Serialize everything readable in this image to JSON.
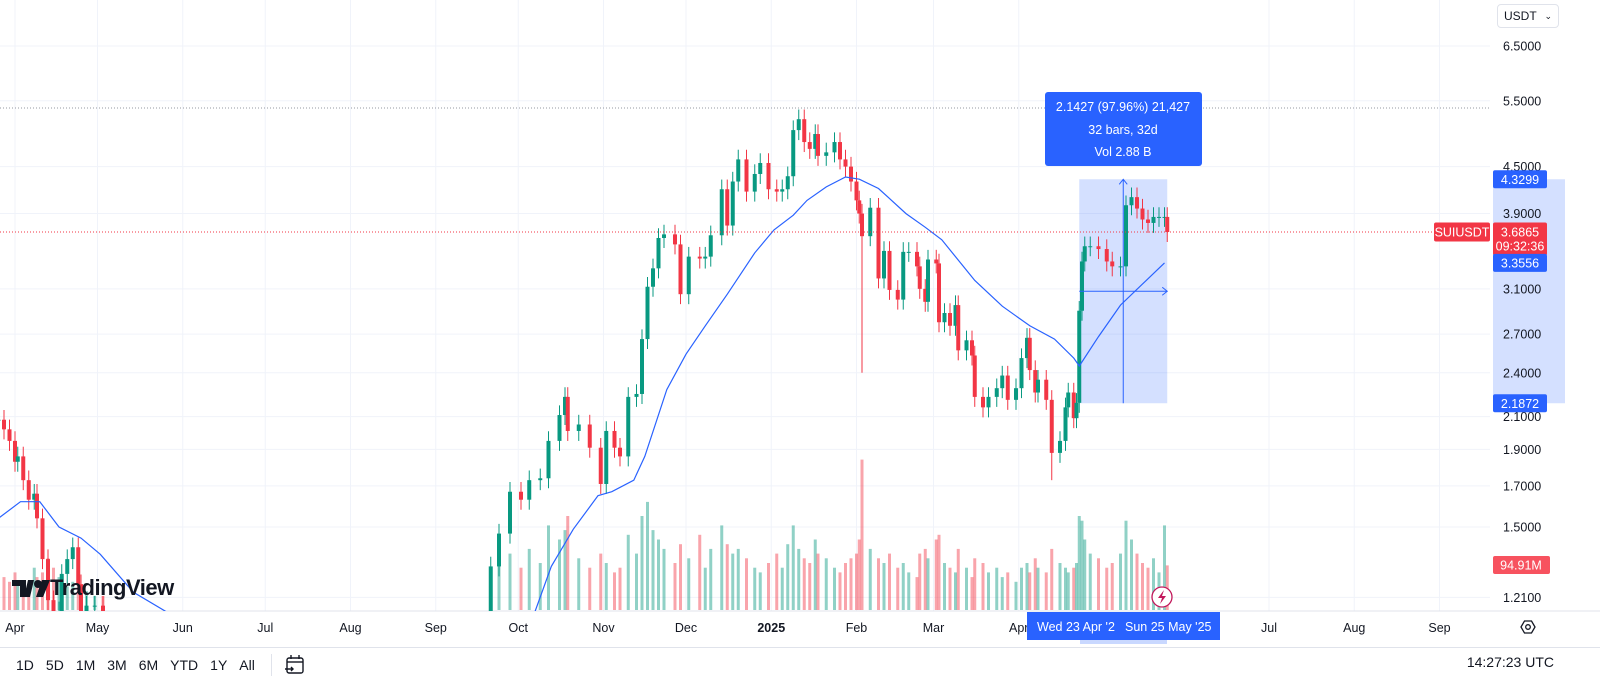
{
  "symbol_label": "SUIUSDT",
  "currency_select": "USDT",
  "logo_text": "TradingView",
  "clock": "14:27:23 UTC",
  "timeframes": [
    "1D",
    "5D",
    "1M",
    "3M",
    "6M",
    "YTD",
    "1Y",
    "All"
  ],
  "colors": {
    "up": "#089981",
    "down": "#F23645",
    "ma": "#2962FF",
    "measure": "#2962FF",
    "measure_fill": "#dbe6fd"
  },
  "chart_data": {
    "type": "candlestick",
    "scale": "log",
    "ylim": [
      1.13,
      6.8
    ],
    "grid": true,
    "y_ticks": [
      "6.5000",
      "5.5000",
      "4.5000",
      "3.9000",
      "3.1000",
      "2.7000",
      "2.4000",
      "2.1000",
      "1.9000",
      "1.7000",
      "1.5000",
      "1.2100"
    ],
    "x_ticks": [
      {
        "date": "2024-04-01",
        "label": "Apr"
      },
      {
        "date": "2024-05-01",
        "label": "May"
      },
      {
        "date": "2024-06-01",
        "label": "Jun"
      },
      {
        "date": "2024-07-01",
        "label": "Jul"
      },
      {
        "date": "2024-08-01",
        "label": "Aug"
      },
      {
        "date": "2024-09-01",
        "label": "Sep"
      },
      {
        "date": "2024-10-01",
        "label": "Oct"
      },
      {
        "date": "2024-11-01",
        "label": "Nov"
      },
      {
        "date": "2024-12-01",
        "label": "Dec"
      },
      {
        "date": "2025-01-01",
        "label": "2025",
        "bold": true
      },
      {
        "date": "2025-02-01",
        "label": "Feb"
      },
      {
        "date": "2025-03-01",
        "label": "Mar"
      },
      {
        "date": "2025-04-01",
        "label": "Apr"
      },
      {
        "date": "2025-07-01",
        "label": "Jul"
      },
      {
        "date": "2025-08-01",
        "label": "Aug"
      },
      {
        "date": "2025-09-01",
        "label": "Sep"
      }
    ],
    "candle_fields": [
      "date",
      "close",
      "volume_M",
      "low"
    ],
    "candles": [
      [
        "2024-03-26",
        2.08,
        90
      ],
      [
        "2024-03-28",
        2.02,
        70
      ],
      [
        "2024-03-30",
        1.95,
        60
      ],
      [
        "2024-04-01",
        1.83,
        80
      ],
      [
        "2024-04-02",
        1.86,
        60
      ],
      [
        "2024-04-04",
        1.73,
        50
      ],
      [
        "2024-04-06",
        1.63,
        40
      ],
      [
        "2024-04-08",
        1.66,
        90
      ],
      [
        "2024-04-09",
        1.54,
        70
      ],
      [
        "2024-04-11",
        1.36,
        80
      ],
      [
        "2024-04-13",
        1.2,
        110
      ],
      [
        "2024-04-15",
        1.12,
        90
      ],
      [
        "2024-04-17",
        1.16,
        70
      ],
      [
        "2024-04-18",
        1.3,
        60
      ],
      [
        "2024-04-20",
        1.36,
        50
      ],
      [
        "2024-04-22",
        1.41,
        60
      ],
      [
        "2024-04-24",
        1.26,
        50
      ],
      [
        "2024-04-25",
        1.12,
        40
      ],
      [
        "2024-04-27",
        1.18,
        40
      ],
      [
        "2024-04-30",
        1.18,
        30
      ],
      [
        "2024-05-03",
        1.15,
        30
      ],
      [
        "2024-09-21",
        1.33,
        60
      ],
      [
        "2024-09-24",
        1.47,
        110
      ],
      [
        "2024-09-28",
        1.67,
        120
      ],
      [
        "2024-10-02",
        1.63,
        90
      ],
      [
        "2024-10-05",
        1.73,
        130
      ],
      [
        "2024-10-09",
        1.74,
        100
      ],
      [
        "2024-10-12",
        1.95,
        180
      ],
      [
        "2024-10-16",
        2.11,
        150
      ],
      [
        "2024-10-18",
        2.23,
        170
      ],
      [
        "2024-10-19",
        2.01,
        200
      ],
      [
        "2024-10-23",
        2.05,
        110
      ],
      [
        "2024-10-27",
        1.91,
        90
      ],
      [
        "2024-10-31",
        1.71,
        120
      ],
      [
        "2024-11-02",
        2.01,
        100
      ],
      [
        "2024-11-05",
        1.91,
        80
      ],
      [
        "2024-11-07",
        1.86,
        90
      ],
      [
        "2024-11-10",
        2.23,
        160
      ],
      [
        "2024-11-13",
        2.25,
        120
      ],
      [
        "2024-11-15",
        2.66,
        200
      ],
      [
        "2024-11-17",
        3.12,
        230
      ],
      [
        "2024-11-19",
        3.3,
        170
      ],
      [
        "2024-11-21",
        3.62,
        150
      ],
      [
        "2024-11-23",
        3.66,
        130
      ],
      [
        "2024-11-27",
        3.55,
        100
      ],
      [
        "2024-11-29",
        3.05,
        140
      ],
      [
        "2024-12-02",
        3.42,
        110
      ],
      [
        "2024-12-06",
        3.4,
        160
      ],
      [
        "2024-12-08",
        3.42,
        90
      ],
      [
        "2024-12-10",
        3.65,
        130
      ],
      [
        "2024-12-14",
        4.2,
        180
      ],
      [
        "2024-12-16",
        3.76,
        140
      ],
      [
        "2024-12-18",
        4.3,
        120
      ],
      [
        "2024-12-20",
        4.6,
        130
      ],
      [
        "2024-12-23",
        4.17,
        110
      ],
      [
        "2024-12-26",
        4.4,
        90
      ],
      [
        "2024-12-28",
        4.55,
        80
      ],
      [
        "2024-12-31",
        4.2,
        100
      ],
      [
        "2025-01-03",
        4.17,
        120
      ],
      [
        "2025-01-05",
        4.2,
        90
      ],
      [
        "2025-01-07",
        4.37,
        140
      ],
      [
        "2025-01-09",
        5.03,
        180
      ],
      [
        "2025-01-11",
        5.2,
        130
      ],
      [
        "2025-01-13",
        4.85,
        110
      ],
      [
        "2025-01-15",
        4.75,
        100
      ],
      [
        "2025-01-17",
        4.97,
        150
      ],
      [
        "2025-01-18",
        4.65,
        120
      ],
      [
        "2025-01-21",
        4.7,
        110
      ],
      [
        "2025-01-24",
        4.85,
        90
      ],
      [
        "2025-01-26",
        4.6,
        80
      ],
      [
        "2025-01-28",
        4.5,
        100
      ],
      [
        "2025-01-30",
        4.3,
        110
      ],
      [
        "2025-02-01",
        4.06,
        120
      ],
      [
        "2025-02-02",
        3.9,
        150
      ],
      [
        "2025-02-03",
        3.64,
        320,
        2.4
      ],
      [
        "2025-02-06",
        3.97,
        130
      ],
      [
        "2025-02-09",
        3.2,
        110
      ],
      [
        "2025-02-11",
        3.48,
        100
      ],
      [
        "2025-02-13",
        3.09,
        120
      ],
      [
        "2025-02-16",
        3.0,
        90
      ],
      [
        "2025-02-18",
        3.47,
        100
      ],
      [
        "2025-02-20",
        3.47,
        80
      ],
      [
        "2025-02-23",
        3.32,
        70
      ],
      [
        "2025-02-24",
        3.1,
        120
      ],
      [
        "2025-02-26",
        2.98,
        130
      ],
      [
        "2025-02-27",
        3.39,
        110
      ],
      [
        "2025-03-02",
        3.35,
        150
      ],
      [
        "2025-03-03",
        2.8,
        160
      ],
      [
        "2025-03-05",
        2.88,
        100
      ],
      [
        "2025-03-07",
        2.77,
        90
      ],
      [
        "2025-03-09",
        2.95,
        80
      ],
      [
        "2025-03-10",
        2.57,
        130
      ],
      [
        "2025-03-13",
        2.65,
        90
      ],
      [
        "2025-03-15",
        2.53,
        70
      ],
      [
        "2025-03-16",
        2.23,
        110
      ],
      [
        "2025-03-19",
        2.16,
        100
      ],
      [
        "2025-03-21",
        2.23,
        80
      ],
      [
        "2025-03-24",
        2.29,
        90
      ],
      [
        "2025-03-26",
        2.38,
        70
      ],
      [
        "2025-03-28",
        2.21,
        80
      ],
      [
        "2025-03-31",
        2.29,
        60
      ],
      [
        "2025-04-02",
        2.51,
        90
      ],
      [
        "2025-04-04",
        2.67,
        100
      ],
      [
        "2025-04-05",
        2.42,
        80
      ],
      [
        "2025-04-07",
        2.26,
        110
      ],
      [
        "2025-04-08",
        2.35,
        90
      ],
      [
        "2025-04-11",
        2.21,
        80
      ],
      [
        "2025-04-13",
        1.88,
        130,
        1.73
      ],
      [
        "2025-04-16",
        1.95,
        100
      ],
      [
        "2025-04-18",
        2.16,
        90
      ],
      [
        "2025-04-19",
        2.26,
        80
      ],
      [
        "2025-04-21",
        2.09,
        90
      ],
      [
        "2025-04-22",
        2.19,
        100
      ],
      [
        "2025-04-23",
        2.9,
        200
      ],
      [
        "2025-04-24",
        3.37,
        190
      ],
      [
        "2025-04-25",
        3.53,
        150
      ],
      [
        "2025-04-27",
        3.53,
        120
      ],
      [
        "2025-04-30",
        3.5,
        110
      ],
      [
        "2025-05-03",
        3.37,
        90
      ],
      [
        "2025-05-05",
        3.32,
        100
      ],
      [
        "2025-05-08",
        3.32,
        120
      ],
      [
        "2025-05-10",
        4.0,
        190
      ],
      [
        "2025-05-12",
        4.1,
        150
      ],
      [
        "2025-05-14",
        3.96,
        120
      ],
      [
        "2025-05-16",
        3.83,
        100
      ],
      [
        "2025-05-18",
        3.79,
        90
      ],
      [
        "2025-05-20",
        3.86,
        110
      ],
      [
        "2025-05-22",
        3.86,
        80
      ],
      [
        "2025-05-24",
        3.86,
        180
      ],
      [
        "2025-05-25",
        3.6865,
        94.91
      ]
    ],
    "moving_average": [
      [
        "2024-03-26",
        1.54
      ],
      [
        "2024-04-03",
        1.62
      ],
      [
        "2024-04-10",
        1.62
      ],
      [
        "2024-04-17",
        1.5
      ],
      [
        "2024-04-25",
        1.45
      ],
      [
        "2024-05-02",
        1.38
      ],
      [
        "2024-05-14",
        1.23
      ],
      [
        "2024-05-31",
        1.13
      ],
      [
        "2024-10-06",
        1.13
      ],
      [
        "2024-10-13",
        1.33
      ],
      [
        "2024-10-21",
        1.49
      ],
      [
        "2024-10-30",
        1.65
      ],
      [
        "2024-11-04",
        1.67
      ],
      [
        "2024-11-12",
        1.73
      ],
      [
        "2024-11-16",
        1.86
      ],
      [
        "2024-11-24",
        2.28
      ],
      [
        "2024-12-01",
        2.54
      ],
      [
        "2024-12-08",
        2.77
      ],
      [
        "2024-12-16",
        3.05
      ],
      [
        "2024-12-26",
        3.46
      ],
      [
        "2025-01-02",
        3.71
      ],
      [
        "2025-01-09",
        3.88
      ],
      [
        "2025-01-14",
        4.06
      ],
      [
        "2025-01-21",
        4.23
      ],
      [
        "2025-01-28",
        4.36
      ],
      [
        "2025-02-02",
        4.33
      ],
      [
        "2025-02-09",
        4.21
      ],
      [
        "2025-02-19",
        3.9
      ],
      [
        "2025-02-26",
        3.74
      ],
      [
        "2025-03-04",
        3.6
      ],
      [
        "2025-03-16",
        3.18
      ],
      [
        "2025-03-26",
        2.94
      ],
      [
        "2025-04-05",
        2.77
      ],
      [
        "2025-04-14",
        2.66
      ],
      [
        "2025-04-21",
        2.51
      ],
      [
        "2025-04-23",
        2.45
      ],
      [
        "2025-04-30",
        2.68
      ],
      [
        "2025-05-08",
        2.95
      ],
      [
        "2025-05-24",
        3.3556
      ]
    ],
    "high_line": 5.38,
    "last_price": {
      "value": "3.6865",
      "countdown": "09:32:36"
    },
    "ma_label": "3.3556",
    "volume_label": "94.91M",
    "measure": {
      "from_date": "2025-04-23",
      "to_date": "2025-05-25",
      "low": 2.1872,
      "high": 4.3299,
      "low_label": "2.1872",
      "high_label": "4.3299",
      "line1": "2.1427 (97.96%) 21,427",
      "line2": "32 bars, 32d",
      "line3": "Vol 2.88 B",
      "from_label": "Wed 23 Apr '2",
      "to_label": "Sun 25 May '25"
    }
  }
}
